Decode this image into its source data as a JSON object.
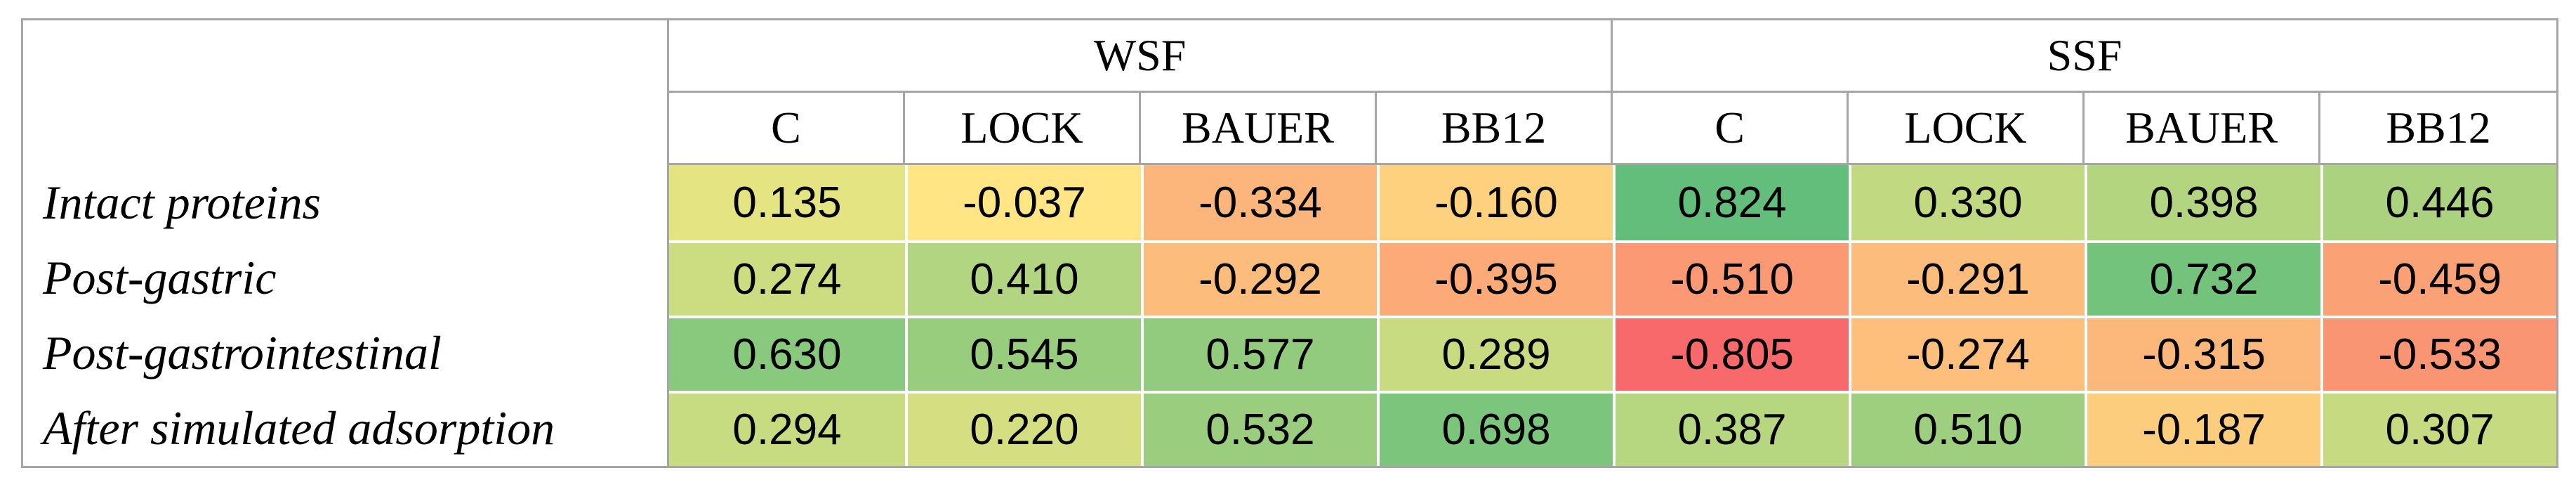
{
  "chart_data": {
    "type": "heatmap",
    "description": "Correlation heatmap table with two column groups and colored cells",
    "column_groups": [
      {
        "label": "WSF",
        "columns": [
          "C",
          "LOCK",
          "BAUER",
          "BB12"
        ]
      },
      {
        "label": "SSF",
        "columns": [
          "C",
          "LOCK",
          "BAUER",
          "BB12"
        ]
      }
    ],
    "rows": [
      "Intact proteins",
      "Post-gastric",
      "Post-gastrointestinal",
      "After simulated adsorption"
    ],
    "values": [
      [
        "0.135",
        "-0.037",
        "-0.334",
        "-0.160",
        "0.824",
        "0.330",
        "0.398",
        "0.446"
      ],
      [
        "0.274",
        "0.410",
        "-0.292",
        "-0.395",
        "-0.510",
        "-0.291",
        "0.732",
        "-0.459"
      ],
      [
        "0.630",
        "0.545",
        "0.577",
        "0.289",
        "-0.805",
        "-0.274",
        "-0.315",
        "-0.533"
      ],
      [
        "0.294",
        "0.220",
        "0.532",
        "0.698",
        "0.387",
        "0.510",
        "-0.187",
        "0.307"
      ]
    ],
    "color_scale": {
      "min_value": -0.805,
      "min_color": "#F8696B",
      "mid_value": 0,
      "mid_color": "#FFEB84",
      "max_value": 0.824,
      "max_color": "#63BE7B"
    },
    "layout_colors": {
      "border_color": "#a6a6a6",
      "cell_gap_color": "#ffffff",
      "text_color": "#000000",
      "background": "#ffffff"
    },
    "grid": "on",
    "legend": "none",
    "title": ""
  }
}
